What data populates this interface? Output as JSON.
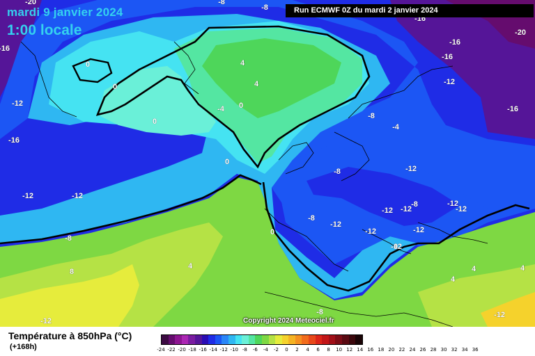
{
  "header": {
    "date": "mardi 9 janvier 2024",
    "time": "1:00 locale",
    "run": "Run ECMWF 0Z du mardi 2 janvier 2024"
  },
  "copyright": "Copyright 2024 Meteociel.fr",
  "legend": {
    "parameter": "Température à 850hPa (°C)",
    "lead": "(+168h)",
    "ticks": [
      "-24",
      "-22",
      "-20",
      "-18",
      "-16",
      "-14",
      "-12",
      "-10",
      "-8",
      "-6",
      "-4",
      "-2",
      "0",
      "2",
      "4",
      "6",
      "8",
      "10",
      "12",
      "14",
      "16",
      "18",
      "20",
      "22",
      "24",
      "26",
      "28",
      "30",
      "32",
      "34",
      "36"
    ],
    "colors": [
      "#3c0a42",
      "#650c6e",
      "#8d1591",
      "#ab27b3",
      "#7a1ca0",
      "#551598",
      "#2a0cb4",
      "#1f2ce6",
      "#1c56f4",
      "#2a86f8",
      "#2fb7f2",
      "#45e3f2",
      "#6af0d8",
      "#54e6a2",
      "#4ed65a",
      "#7ed843",
      "#b5e245",
      "#e6ec3c",
      "#f5d22c",
      "#f5b323",
      "#f59020",
      "#f26c1c",
      "#e8481a",
      "#db2518",
      "#c21618",
      "#a10f18",
      "#7c0c16",
      "#5a0a12",
      "#3b070c",
      "#1a0406"
    ]
  },
  "map_labels": [
    "-20",
    "-8",
    "-8",
    "-16",
    "-20",
    "-16",
    "-16",
    "0",
    "4",
    "-16",
    "0",
    "4",
    "-12",
    "-12",
    "-16",
    "-4",
    "0",
    "0",
    "-8",
    "-4",
    "-16",
    "-16",
    "0",
    "-8",
    "-12",
    "-12",
    "-12",
    "-12",
    "-8",
    "-12",
    "-12",
    "-12",
    "-12",
    "-8",
    "0",
    "-12",
    "-12",
    "-8",
    "-12",
    "0",
    "4",
    "4",
    "8",
    "4",
    "4",
    "-12",
    "-8",
    "-12"
  ],
  "map_label_colors": {
    "text": "#ffffff",
    "contour": "#000000",
    "coast": "#000000"
  }
}
